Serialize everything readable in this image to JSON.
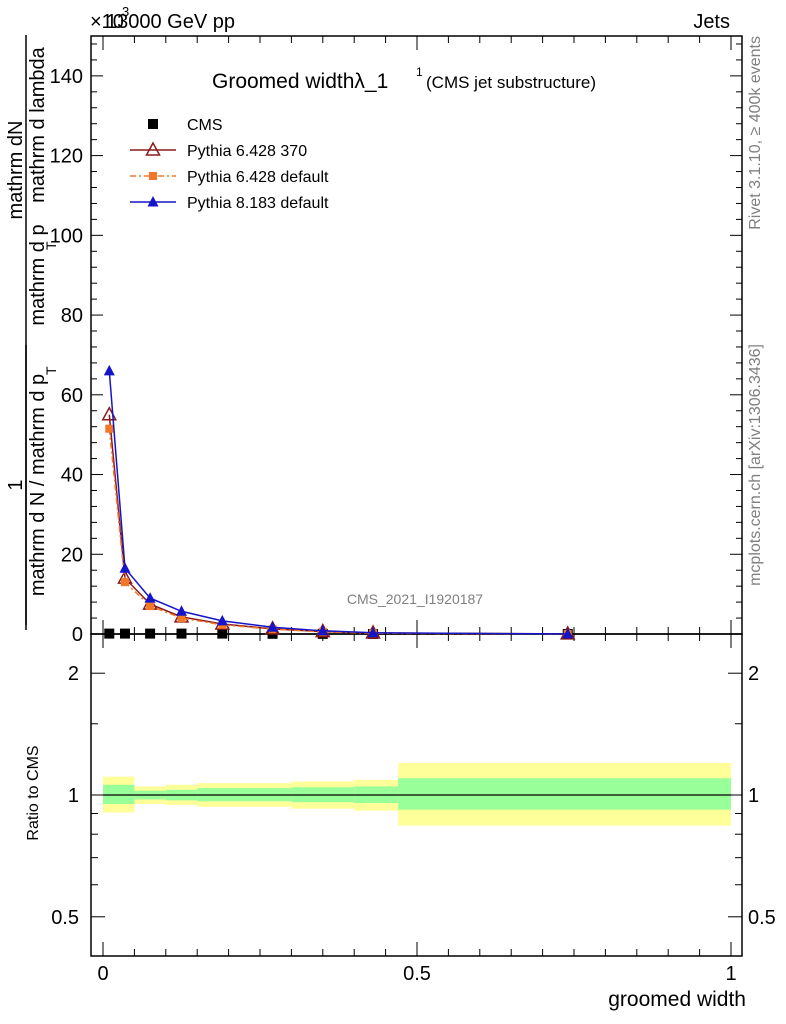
{
  "header": {
    "energy_label": "13000 GeV pp",
    "exponent_label": "×10",
    "exponent_power": "3",
    "category": "Jets"
  },
  "side_labels": {
    "rivet": "Rivet 3.1.10, ≥ 400k events",
    "mcplots": "mcplots.cern.ch [arXiv:1306.3436]"
  },
  "ylabel_main": {
    "numerator_one": "1",
    "numerator_two": "mathrm d",
    "denominator_one": "mathrm d N / mathrm d p",
    "denominator_two": "mathrm d p",
    "frac_tail_one": "mathrm dN",
    "frac_tail_two": "mathrm d lambda",
    "sub_T": "T",
    "sub_T2": "T"
  },
  "chart_data": [
    {
      "type": "line",
      "title": "Groomed widthλ_1",
      "title_sup": "1",
      "subtitle": "(CMS jet substructure)",
      "analysis_tag": "CMS_2021_I1920187",
      "xlabel": "groomed width",
      "ylabel": "1/N dN/dpT dpT dlambda",
      "xlim": [
        0,
        1
      ],
      "ylim": [
        0,
        150
      ],
      "y_scale": "x10^3",
      "yticks": [
        0,
        20,
        40,
        60,
        80,
        100,
        120,
        140
      ],
      "ytick_labels": [
        "0",
        "20",
        "40",
        "60",
        "80",
        "100",
        "120",
        "140"
      ],
      "legend_position": "top-left",
      "series": [
        {
          "name": "CMS",
          "style": "data",
          "color": "#000000",
          "marker": "square",
          "x": [
            0.01,
            0.035,
            0.075,
            0.125,
            0.19,
            0.27,
            0.35,
            0.43,
            0.74
          ],
          "y": [
            0.1,
            0.1,
            0.1,
            0.1,
            0.1,
            0.05,
            0.03,
            0.01,
            0.005
          ]
        },
        {
          "name": "Pythia 6.428 370",
          "style": "solid",
          "color": "#8b1a1a",
          "marker": "open-triangle",
          "x": [
            0.01,
            0.035,
            0.075,
            0.125,
            0.19,
            0.27,
            0.35,
            0.43,
            0.74
          ],
          "y": [
            55,
            14,
            7.5,
            4.3,
            2.5,
            1.3,
            0.6,
            0.25,
            0.02
          ]
        },
        {
          "name": "Pythia 6.428 default",
          "style": "dashdot",
          "color": "#f07828",
          "marker": "filled-square",
          "x": [
            0.01,
            0.035,
            0.075,
            0.125,
            0.19,
            0.27,
            0.35,
            0.43,
            0.74
          ],
          "y": [
            51.5,
            13,
            7,
            4,
            2.3,
            1.2,
            0.55,
            0.2,
            0.02
          ]
        },
        {
          "name": "Pythia 8.183 default",
          "style": "solid",
          "color": "#1414c8",
          "marker": "filled-triangle",
          "x": [
            0.01,
            0.035,
            0.075,
            0.125,
            0.19,
            0.27,
            0.35,
            0.43,
            0.74
          ],
          "y": [
            66,
            16.5,
            9,
            5.7,
            3.3,
            1.7,
            0.8,
            0.3,
            0.02
          ]
        }
      ]
    },
    {
      "type": "area",
      "title": "",
      "ylabel": "Ratio to CMS",
      "xlabel": "groomed width",
      "xlim": [
        0,
        1
      ],
      "ylim": [
        0.4,
        2.5
      ],
      "y_scale": "log",
      "yticks": [
        0.5,
        1,
        2
      ],
      "ytick_labels": [
        "0.5",
        "1",
        "2"
      ],
      "xticks": [
        0,
        0.5,
        1
      ],
      "xtick_labels": [
        "0",
        "0.5",
        "1"
      ],
      "reference_line": 1,
      "bins": [
        {
          "x0": 0.0,
          "x1": 0.05,
          "stat_lo": 0.95,
          "stat_hi": 1.06,
          "tot_lo": 0.905,
          "tot_hi": 1.11
        },
        {
          "x0": 0.05,
          "x1": 0.1,
          "stat_lo": 0.975,
          "stat_hi": 1.025,
          "tot_lo": 0.95,
          "tot_hi": 1.05
        },
        {
          "x0": 0.1,
          "x1": 0.15,
          "stat_lo": 0.97,
          "stat_hi": 1.03,
          "tot_lo": 0.945,
          "tot_hi": 1.06
        },
        {
          "x0": 0.15,
          "x1": 0.3,
          "stat_lo": 0.965,
          "stat_hi": 1.04,
          "tot_lo": 0.935,
          "tot_hi": 1.07
        },
        {
          "x0": 0.3,
          "x1": 0.4,
          "stat_lo": 0.96,
          "stat_hi": 1.045,
          "tot_lo": 0.925,
          "tot_hi": 1.08
        },
        {
          "x0": 0.4,
          "x1": 0.47,
          "stat_lo": 0.955,
          "stat_hi": 1.05,
          "tot_lo": 0.915,
          "tot_hi": 1.09
        },
        {
          "x0": 0.47,
          "x1": 1.0,
          "stat_lo": 0.92,
          "stat_hi": 1.1,
          "tot_lo": 0.84,
          "tot_hi": 1.2
        }
      ],
      "colors": {
        "stat": "#99ff99",
        "total": "#ffff99"
      }
    }
  ]
}
